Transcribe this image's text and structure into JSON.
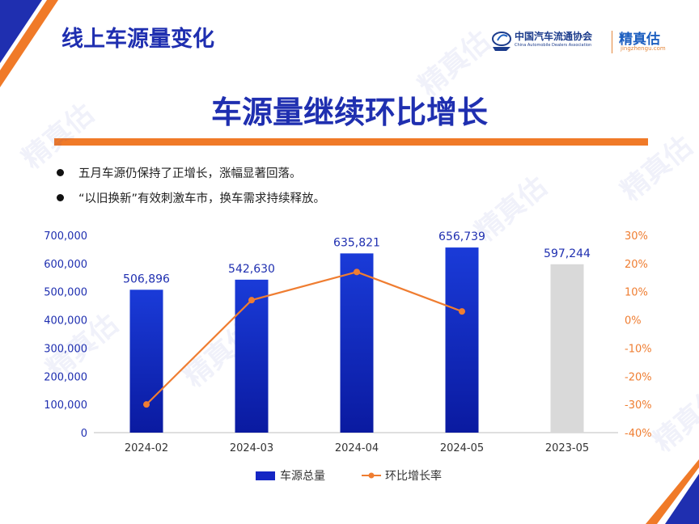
{
  "slide_title": "线上车源量变化",
  "headline": "车源量继续环比增长",
  "bullets": [
    "五月车源仍保持了正增长，涨幅显著回落。",
    "“以旧换新”有效刺激车市，换车需求持续释放。"
  ],
  "logos": {
    "cada": "中国汽车流通协会",
    "cada_en": "China Automobile Dealers Association",
    "jzg": "精真估",
    "jzg_url": "jingzhengu.com"
  },
  "watermark_text": "精真估",
  "colors": {
    "title_blue": "#1f2fb0",
    "bar_blue_top": "#1a3bd8",
    "bar_blue_bottom": "#0a1aa0",
    "bar_gray": "#d9d9d9",
    "line_orange": "#ef7d31",
    "accent_orange": "#f07a28"
  },
  "chart_data": {
    "type": "bar",
    "categories": [
      "2024-02",
      "2024-03",
      "2024-04",
      "2024-05",
      "2023-05"
    ],
    "series": [
      {
        "name": "车源总量",
        "type": "bar",
        "axis": "left",
        "values": [
          506896,
          542630,
          635821,
          656739,
          597244
        ]
      },
      {
        "name": "环比增长率",
        "type": "line",
        "axis": "right",
        "values": [
          -30,
          7,
          17,
          3,
          null
        ]
      }
    ],
    "data_labels": [
      "506,896",
      "542,630",
      "635,821",
      "656,739",
      "597,244"
    ],
    "left_axis": {
      "min": 0,
      "max": 700000,
      "ticks": [
        0,
        100000,
        200000,
        300000,
        400000,
        500000,
        600000,
        700000
      ],
      "tick_labels": [
        "0",
        "100,000",
        "200,000",
        "300,000",
        "400,000",
        "500,000",
        "600,000",
        "700,000"
      ]
    },
    "right_axis": {
      "min": -40,
      "max": 30,
      "ticks": [
        -40,
        -30,
        -20,
        -10,
        0,
        10,
        20,
        30
      ],
      "tick_labels": [
        "-40%",
        "-30%",
        "-20%",
        "-10%",
        "0%",
        "10%",
        "20%",
        "30%"
      ]
    },
    "grid": false,
    "legend_position": "bottom"
  }
}
